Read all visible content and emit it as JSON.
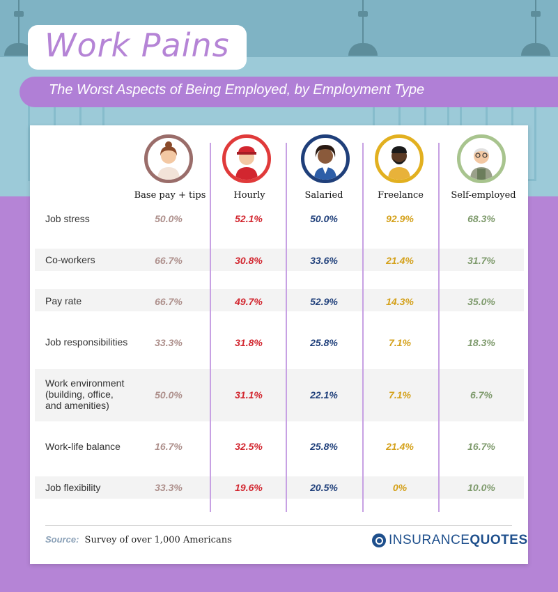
{
  "header": {
    "title": "Work Pains",
    "subtitle": "The Worst Aspects of Being Employed, by Employment Type"
  },
  "colors": {
    "background_purple": "#b584d6",
    "sky": "#7fb3c4",
    "base_pay": "#ad8f8b",
    "hourly": "#d2262f",
    "salaried": "#1f3f7a",
    "freelance": "#d4a019",
    "self_employed": "#7e9a6c"
  },
  "chart_data": {
    "type": "table",
    "title": "Work Pains",
    "subtitle": "The Worst Aspects of Being Employed, by Employment Type",
    "columns": [
      "Base pay + tips",
      "Hourly",
      "Salaried",
      "Freelance",
      "Self-employed"
    ],
    "rows": [
      {
        "label": "Job stress",
        "values": [
          "50.0%",
          "52.1%",
          "50.0%",
          "92.9%",
          "68.3%"
        ]
      },
      {
        "label": "Co-workers",
        "values": [
          "66.7%",
          "30.8%",
          "33.6%",
          "21.4%",
          "31.7%"
        ]
      },
      {
        "label": "Pay rate",
        "values": [
          "66.7%",
          "49.7%",
          "52.9%",
          "14.3%",
          "35.0%"
        ]
      },
      {
        "label": "Job responsibilities",
        "values": [
          "33.3%",
          "31.8%",
          "25.8%",
          "7.1%",
          "18.3%"
        ]
      },
      {
        "label": "Work environment (building, office, and amenities)",
        "values": [
          "50.0%",
          "31.1%",
          "22.1%",
          "7.1%",
          "6.7%"
        ]
      },
      {
        "label": "Work-life balance",
        "values": [
          "16.7%",
          "32.5%",
          "25.8%",
          "21.4%",
          "16.7%"
        ]
      },
      {
        "label": "Job flexibility",
        "values": [
          "33.3%",
          "19.6%",
          "20.5%",
          "0%",
          "10.0%"
        ]
      }
    ]
  },
  "footer": {
    "source_label": "Source:",
    "source_text": "Survey of over 1,000 Americans",
    "brand_part1": "INSURANCE",
    "brand_part2": "QUOTES"
  }
}
